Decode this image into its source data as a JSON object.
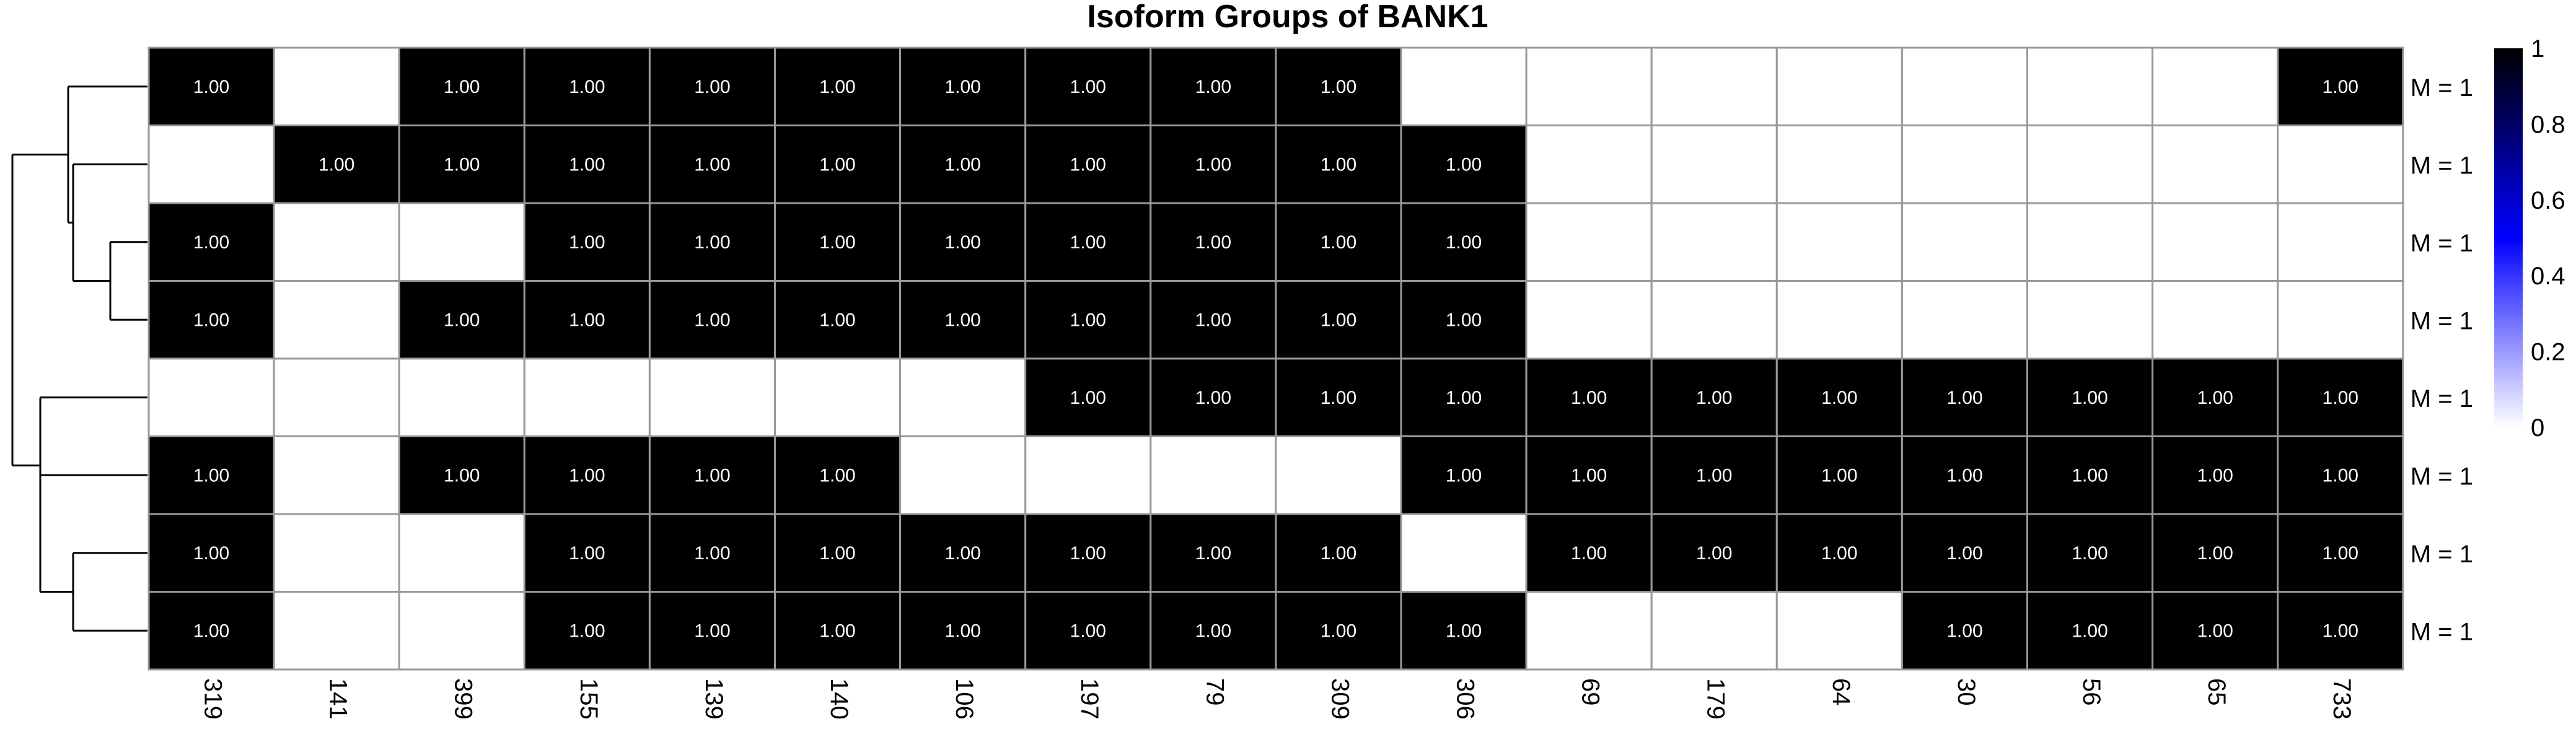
{
  "chart_data": {
    "type": "heatmap",
    "title": "Isoform Groups of BANK1",
    "columns": [
      "319",
      "141",
      "399",
      "155",
      "139",
      "140",
      "106",
      "197",
      "79",
      "309",
      "306",
      "69",
      "179",
      "64",
      "30",
      "56",
      "65",
      "733"
    ],
    "row_labels": [
      "M = 1",
      "M = 1",
      "M = 1",
      "M = 1",
      "M = 1",
      "M = 1",
      "M = 1",
      "M = 1"
    ],
    "values": [
      [
        1,
        0,
        1,
        1,
        1,
        1,
        1,
        1,
        1,
        1,
        0,
        0,
        0,
        0,
        0,
        0,
        0,
        1
      ],
      [
        0,
        1,
        1,
        1,
        1,
        1,
        1,
        1,
        1,
        1,
        1,
        0,
        0,
        0,
        0,
        0,
        0,
        0
      ],
      [
        1,
        0,
        0,
        1,
        1,
        1,
        1,
        1,
        1,
        1,
        1,
        0,
        0,
        0,
        0,
        0,
        0,
        0
      ],
      [
        1,
        0,
        1,
        1,
        1,
        1,
        1,
        1,
        1,
        1,
        1,
        0,
        0,
        0,
        0,
        0,
        0,
        0
      ],
      [
        0,
        0,
        0,
        0,
        0,
        0,
        0,
        1,
        1,
        1,
        1,
        1,
        1,
        1,
        1,
        1,
        1,
        1
      ],
      [
        1,
        0,
        1,
        1,
        1,
        1,
        0,
        0,
        0,
        0,
        1,
        1,
        1,
        1,
        1,
        1,
        1,
        1
      ],
      [
        1,
        0,
        0,
        1,
        1,
        1,
        1,
        1,
        1,
        1,
        0,
        1,
        1,
        1,
        1,
        1,
        1,
        1
      ],
      [
        1,
        0,
        0,
        1,
        1,
        1,
        1,
        1,
        1,
        1,
        1,
        0,
        0,
        0,
        1,
        1,
        1,
        1
      ]
    ],
    "cell_label": "1.00",
    "colorbar": {
      "ticks": [
        "1",
        "0.8",
        "0.6",
        "0.4",
        "0.2",
        "0"
      ],
      "colors": [
        "#000000",
        "#0000ff",
        "#ffffff"
      ]
    },
    "dendrogram": "rows",
    "colors": {
      "filled": "#000000",
      "empty": "#ffffff",
      "grid": "#999999"
    }
  }
}
